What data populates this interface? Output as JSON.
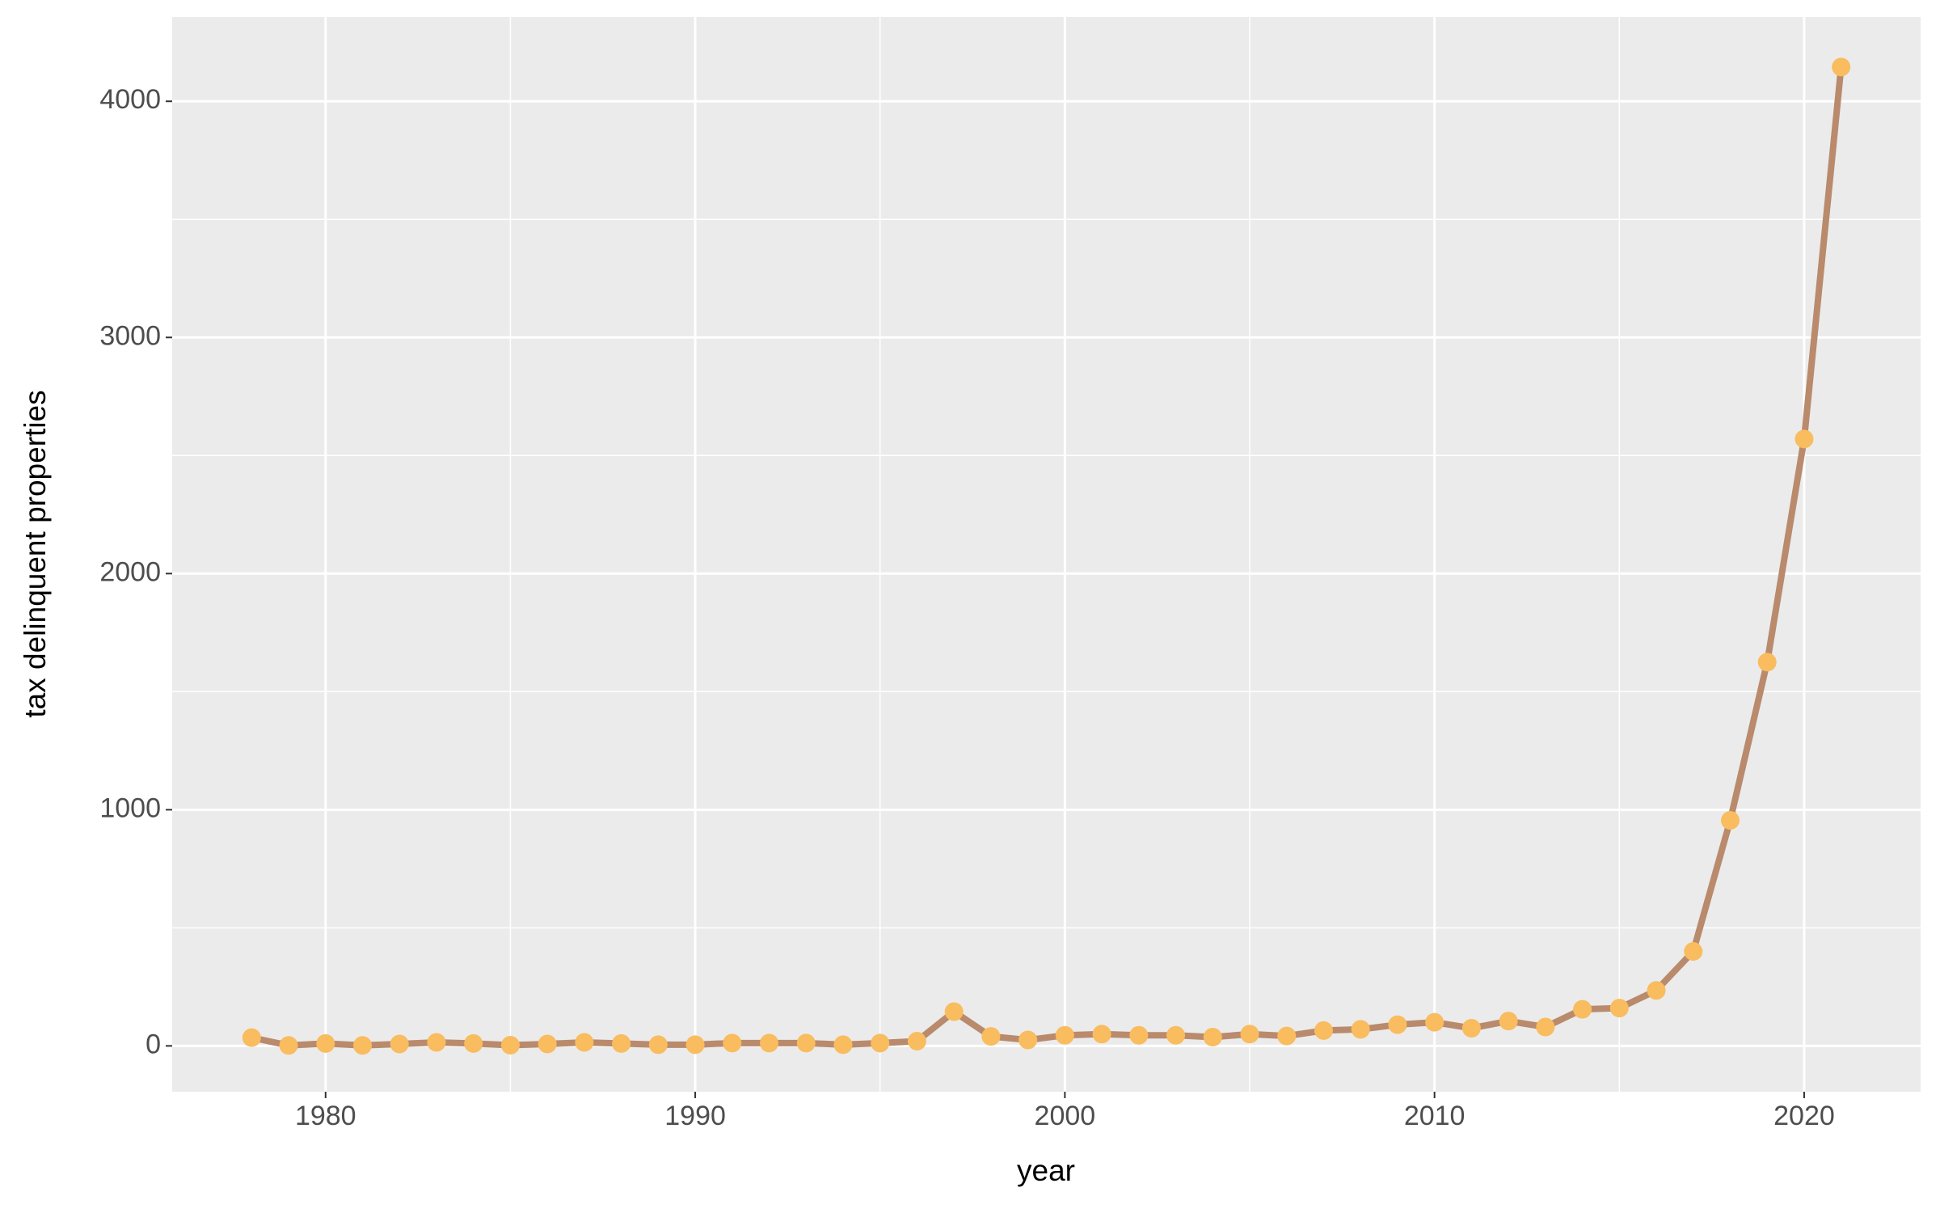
{
  "chart_data": {
    "type": "line",
    "x_label": "year",
    "y_label": "tax delinquent properties",
    "x": [
      1978,
      1979,
      1980,
      1981,
      1982,
      1983,
      1984,
      1985,
      1986,
      1987,
      1988,
      1989,
      1990,
      1991,
      1992,
      1993,
      1994,
      1995,
      1996,
      1997,
      1998,
      1999,
      2000,
      2001,
      2002,
      2003,
      2004,
      2005,
      2006,
      2007,
      2008,
      2009,
      2010,
      2011,
      2012,
      2013,
      2014,
      2015,
      2016,
      2017,
      2018,
      2019,
      2020,
      2021
    ],
    "series": [
      {
        "line_color": "#b98a6c",
        "point_color": "#f9bc5e",
        "values": [
          35,
          2,
          10,
          2,
          8,
          15,
          10,
          3,
          8,
          15,
          10,
          5,
          5,
          12,
          12,
          12,
          5,
          12,
          20,
          145,
          40,
          25,
          45,
          50,
          45,
          45,
          37,
          50,
          42,
          65,
          70,
          90,
          100,
          75,
          105,
          80,
          155,
          160,
          235,
          400,
          955,
          1625,
          2570,
          4145
        ]
      }
    ],
    "xlim": [
      1975.85,
      2023.15
    ],
    "xticks": [
      1980,
      1990,
      2000,
      2010,
      2020
    ],
    "ylim": [
      -194,
      4357
    ],
    "yticks": [
      0,
      1000,
      2000,
      3000,
      4000
    ],
    "grid": true,
    "panel_color": "#ebebeb"
  }
}
